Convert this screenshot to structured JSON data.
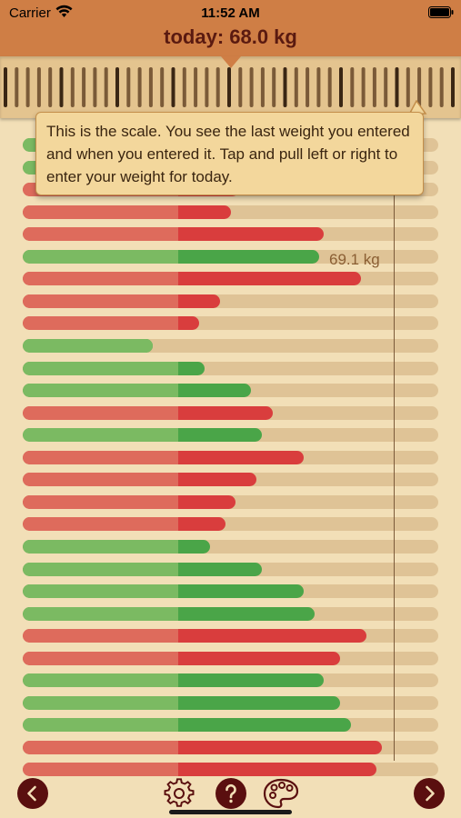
{
  "status_bar": {
    "carrier": "Carrier",
    "time": "11:52 AM"
  },
  "header": {
    "today_label": "today: 68.0 kg"
  },
  "tooltip": {
    "text": "This is the scale. You see the last weight you entered and when you entered it. Tap and pull left or right to enter your weight for today."
  },
  "goal": {
    "label": "69.1 kg"
  },
  "colors": {
    "header": "#cf7e45",
    "background": "#f2dfb7",
    "loss": "#4aa548",
    "gain": "#d93d3d"
  },
  "weight_history": [
    {
      "trend": "green",
      "fraction": 0.48
    },
    {
      "trend": "green",
      "fraction": 0.5
    },
    {
      "trend": "red",
      "fraction": 0.52
    },
    {
      "trend": "red",
      "fraction": 0.5
    },
    {
      "trend": "red",
      "fraction": 0.725
    },
    {
      "trend": "green",
      "fraction": 0.713
    },
    {
      "trend": "red",
      "fraction": 0.814
    },
    {
      "trend": "red",
      "fraction": 0.475
    },
    {
      "trend": "red",
      "fraction": 0.425
    },
    {
      "trend": "green",
      "fraction": 0.313
    },
    {
      "trend": "green",
      "fraction": 0.438
    },
    {
      "trend": "green",
      "fraction": 0.549
    },
    {
      "trend": "red",
      "fraction": 0.601
    },
    {
      "trend": "green",
      "fraction": 0.576
    },
    {
      "trend": "red",
      "fraction": 0.676
    },
    {
      "trend": "red",
      "fraction": 0.562
    },
    {
      "trend": "red",
      "fraction": 0.512
    },
    {
      "trend": "red",
      "fraction": 0.488
    },
    {
      "trend": "green",
      "fraction": 0.451
    },
    {
      "trend": "green",
      "fraction": 0.576
    },
    {
      "trend": "green",
      "fraction": 0.676
    },
    {
      "trend": "green",
      "fraction": 0.702
    },
    {
      "trend": "red",
      "fraction": 0.827
    },
    {
      "trend": "red",
      "fraction": 0.764
    },
    {
      "trend": "green",
      "fraction": 0.725
    },
    {
      "trend": "green",
      "fraction": 0.764
    },
    {
      "trend": "green",
      "fraction": 0.79
    },
    {
      "trend": "red",
      "fraction": 0.865
    },
    {
      "trend": "red",
      "fraction": 0.852
    }
  ],
  "toolbar": {
    "left": "chevron-left-icon",
    "settings": "gear-icon",
    "help": "question-icon",
    "theme": "palette-icon",
    "right": "chevron-right-icon"
  }
}
